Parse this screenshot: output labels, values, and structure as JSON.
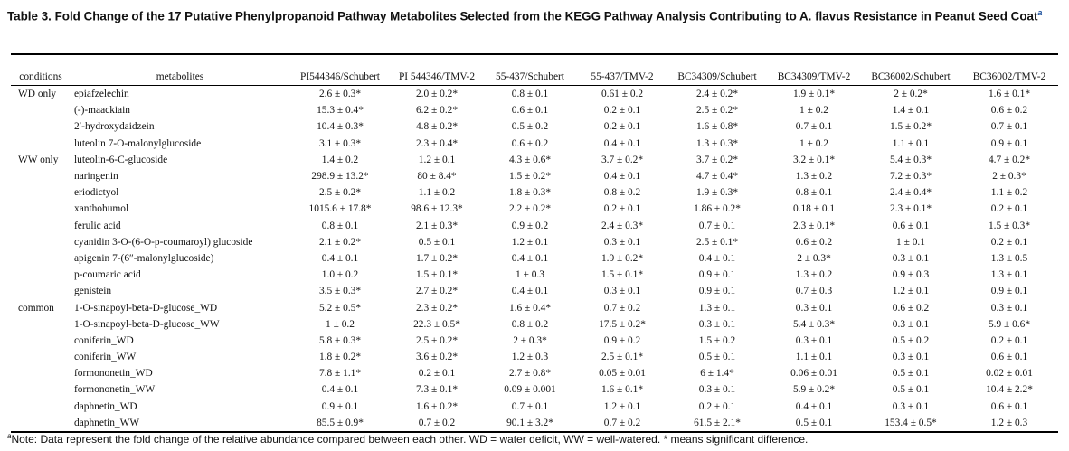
{
  "caption": {
    "text": "Table 3. Fold Change of the 17 Putative Phenylpropanoid Pathway Metabolites Selected from the KEGG Pathway Analysis Contributing to A. flavus Resistance in Peanut Seed Coat",
    "marker": "a"
  },
  "table": {
    "headers": [
      "conditions",
      "metabolites",
      "PI544346/Schubert",
      "PI 544346/TMV-2",
      "55-437/Schubert",
      "55-437/TMV-2",
      "BC34309/Schubert",
      "BC34309/TMV-2",
      "BC36002/Schubert",
      "BC36002/TMV-2"
    ],
    "rows": [
      {
        "condition": "WD only",
        "metabolite": "epiafzelechin",
        "values": [
          "2.6 ± 0.3*",
          "2.0 ± 0.2*",
          "0.8 ± 0.1",
          "0.61 ± 0.2",
          "2.4 ± 0.2*",
          "1.9 ± 0.1*",
          "2 ± 0.2*",
          "1.6 ± 0.1*"
        ]
      },
      {
        "condition": "",
        "metabolite": "(-)-maackiain",
        "values": [
          "15.3 ± 0.4*",
          "6.2 ± 0.2*",
          "0.6 ± 0.1",
          "0.2 ± 0.1",
          "2.5 ± 0.2*",
          "1 ± 0.2",
          "1.4 ± 0.1",
          "0.6 ± 0.2"
        ]
      },
      {
        "condition": "",
        "metabolite": "2′-hydroxydaidzein",
        "values": [
          "10.4 ± 0.3*",
          "4.8 ± 0.2*",
          "0.5 ± 0.2",
          "0.2 ± 0.1",
          "1.6 ± 0.8*",
          "0.7 ± 0.1",
          "1.5 ± 0.2*",
          "0.7 ± 0.1"
        ]
      },
      {
        "condition": "",
        "metabolite": "luteolin 7-O-malonylglucoside",
        "values": [
          "3.1 ± 0.3*",
          "2.3 ± 0.4*",
          "0.6 ± 0.2",
          "0.4 ± 0.1",
          "1.3 ± 0.3*",
          "1 ± 0.2",
          "1.1 ± 0.1",
          "0.9 ± 0.1"
        ]
      },
      {
        "condition": "WW only",
        "metabolite": "luteolin-6-C-glucoside",
        "values": [
          "1.4 ± 0.2",
          "1.2 ± 0.1",
          "4.3 ± 0.6*",
          "3.7 ± 0.2*",
          "3.7 ± 0.2*",
          "3.2 ± 0.1*",
          "5.4 ± 0.3*",
          "4.7 ± 0.2*"
        ]
      },
      {
        "condition": "",
        "metabolite": "naringenin",
        "values": [
          "298.9 ± 13.2*",
          "80 ± 8.4*",
          "1.5 ± 0.2*",
          "0.4 ± 0.1",
          "4.7 ± 0.4*",
          "1.3 ± 0.2",
          "7.2 ± 0.3*",
          "2 ± 0.3*"
        ]
      },
      {
        "condition": "",
        "metabolite": "eriodictyol",
        "values": [
          "2.5 ± 0.2*",
          "1.1 ± 0.2",
          "1.8 ± 0.3*",
          "0.8 ± 0.2",
          "1.9 ± 0.3*",
          "0.8 ± 0.1",
          "2.4 ± 0.4*",
          "1.1 ± 0.2"
        ]
      },
      {
        "condition": "",
        "metabolite": "xanthohumol",
        "values": [
          "1015.6 ± 17.8*",
          "98.6 ± 12.3*",
          "2.2 ± 0.2*",
          "0.2 ± 0.1",
          "1.86 ± 0.2*",
          "0.18 ± 0.1",
          "2.3 ± 0.1*",
          "0.2 ± 0.1"
        ]
      },
      {
        "condition": "",
        "metabolite": "ferulic acid",
        "values": [
          "0.8 ± 0.1",
          "2.1 ± 0.3*",
          "0.9 ± 0.2",
          "2.4 ± 0.3*",
          "0.7 ± 0.1",
          "2.3 ± 0.1*",
          "0.6 ± 0.1",
          "1.5 ± 0.3*"
        ]
      },
      {
        "condition": "",
        "metabolite": "cyanidin 3-O-(6-O-p-coumaroyl) glucoside",
        "values": [
          "2.1 ± 0.2*",
          "0.5 ± 0.1",
          "1.2 ± 0.1",
          "0.3 ± 0.1",
          "2.5 ± 0.1*",
          "0.6 ± 0.2",
          "1 ± 0.1",
          "0.2 ± 0.1"
        ]
      },
      {
        "condition": "",
        "metabolite": "apigenin 7-(6″-malonylglucoside)",
        "values": [
          "0.4 ± 0.1",
          "1.7 ± 0.2*",
          "0.4 ± 0.1",
          "1.9 ± 0.2*",
          "0.4 ± 0.1",
          "2 ± 0.3*",
          "0.3 ± 0.1",
          "1.3 ± 0.5"
        ]
      },
      {
        "condition": "",
        "metabolite": "p-coumaric acid",
        "values": [
          "1.0 ± 0.2",
          "1.5 ± 0.1*",
          "1 ± 0.3",
          "1.5 ± 0.1*",
          "0.9 ± 0.1",
          "1.3 ± 0.2",
          "0.9 ± 0.3",
          "1.3 ± 0.1"
        ]
      },
      {
        "condition": "",
        "metabolite": "genistein",
        "values": [
          "3.5 ± 0.3*",
          "2.7 ± 0.2*",
          "0.4 ± 0.1",
          "0.3 ± 0.1",
          "0.9 ± 0.1",
          "0.7 ± 0.3",
          "1.2 ± 0.1",
          "0.9 ± 0.1"
        ]
      },
      {
        "condition": "common",
        "metabolite": "1-O-sinapoyl-beta-D-glucose_WD",
        "values": [
          "5.2 ± 0.5*",
          "2.3 ± 0.2*",
          "1.6 ± 0.4*",
          "0.7 ± 0.2",
          "1.3 ± 0.1",
          "0.3 ± 0.1",
          "0.6 ± 0.2",
          "0.3 ± 0.1"
        ]
      },
      {
        "condition": "",
        "metabolite": "1-O-sinapoyl-beta-D-glucose_WW",
        "values": [
          "1 ± 0.2",
          "22.3 ± 0.5*",
          "0.8 ± 0.2",
          "17.5 ± 0.2*",
          "0.3 ± 0.1",
          "5.4 ± 0.3*",
          "0.3 ± 0.1",
          "5.9 ± 0.6*"
        ]
      },
      {
        "condition": "",
        "metabolite": "coniferin_WD",
        "values": [
          "5.8 ± 0.3*",
          "2.5 ± 0.2*",
          "2 ± 0.3*",
          "0.9 ± 0.2",
          "1.5 ± 0.2",
          "0.3 ± 0.1",
          "0.5 ± 0.2",
          "0.2 ± 0.1"
        ]
      },
      {
        "condition": "",
        "metabolite": "coniferin_WW",
        "values": [
          "1.8 ± 0.2*",
          "3.6 ± 0.2*",
          "1.2 ± 0.3",
          "2.5 ± 0.1*",
          "0.5 ± 0.1",
          "1.1 ± 0.1",
          "0.3 ± 0.1",
          "0.6 ± 0.1"
        ]
      },
      {
        "condition": "",
        "metabolite": "formononetin_WD",
        "values": [
          "7.8 ± 1.1*",
          "0.2 ± 0.1",
          "2.7 ± 0.8*",
          "0.05 ± 0.01",
          "6 ± 1.4*",
          "0.06 ± 0.01",
          "0.5 ± 0.1",
          "0.02 ± 0.01"
        ]
      },
      {
        "condition": "",
        "metabolite": "formononetin_WW",
        "values": [
          "0.4 ± 0.1",
          "7.3 ± 0.1*",
          "0.09 ± 0.001",
          "1.6 ± 0.1*",
          "0.3 ± 0.1",
          "5.9 ± 0.2*",
          "0.5 ± 0.1",
          "10.4 ± 2.2*"
        ]
      },
      {
        "condition": "",
        "metabolite": "daphnetin_WD",
        "values": [
          "0.9 ± 0.1",
          "1.6 ± 0.2*",
          "0.7 ± 0.1",
          "1.2 ± 0.1",
          "0.2 ± 0.1",
          "0.4 ± 0.1",
          "0.3 ± 0.1",
          "0.6 ± 0.1"
        ]
      },
      {
        "condition": "",
        "metabolite": "daphnetin_WW",
        "values": [
          "85.5 ± 0.9*",
          "0.7 ± 0.2",
          "90.1 ± 3.2*",
          "0.7 ± 0.2",
          "61.5 ± 2.1*",
          "0.5 ± 0.1",
          "153.4 ± 0.5*",
          "1.2 ± 0.3"
        ]
      }
    ]
  },
  "footnote": {
    "marker": "a",
    "text": "Note: Data represent the fold change of the relative abundance compared between each other. WD = water deficit, WW = well-watered. * means significant difference."
  }
}
